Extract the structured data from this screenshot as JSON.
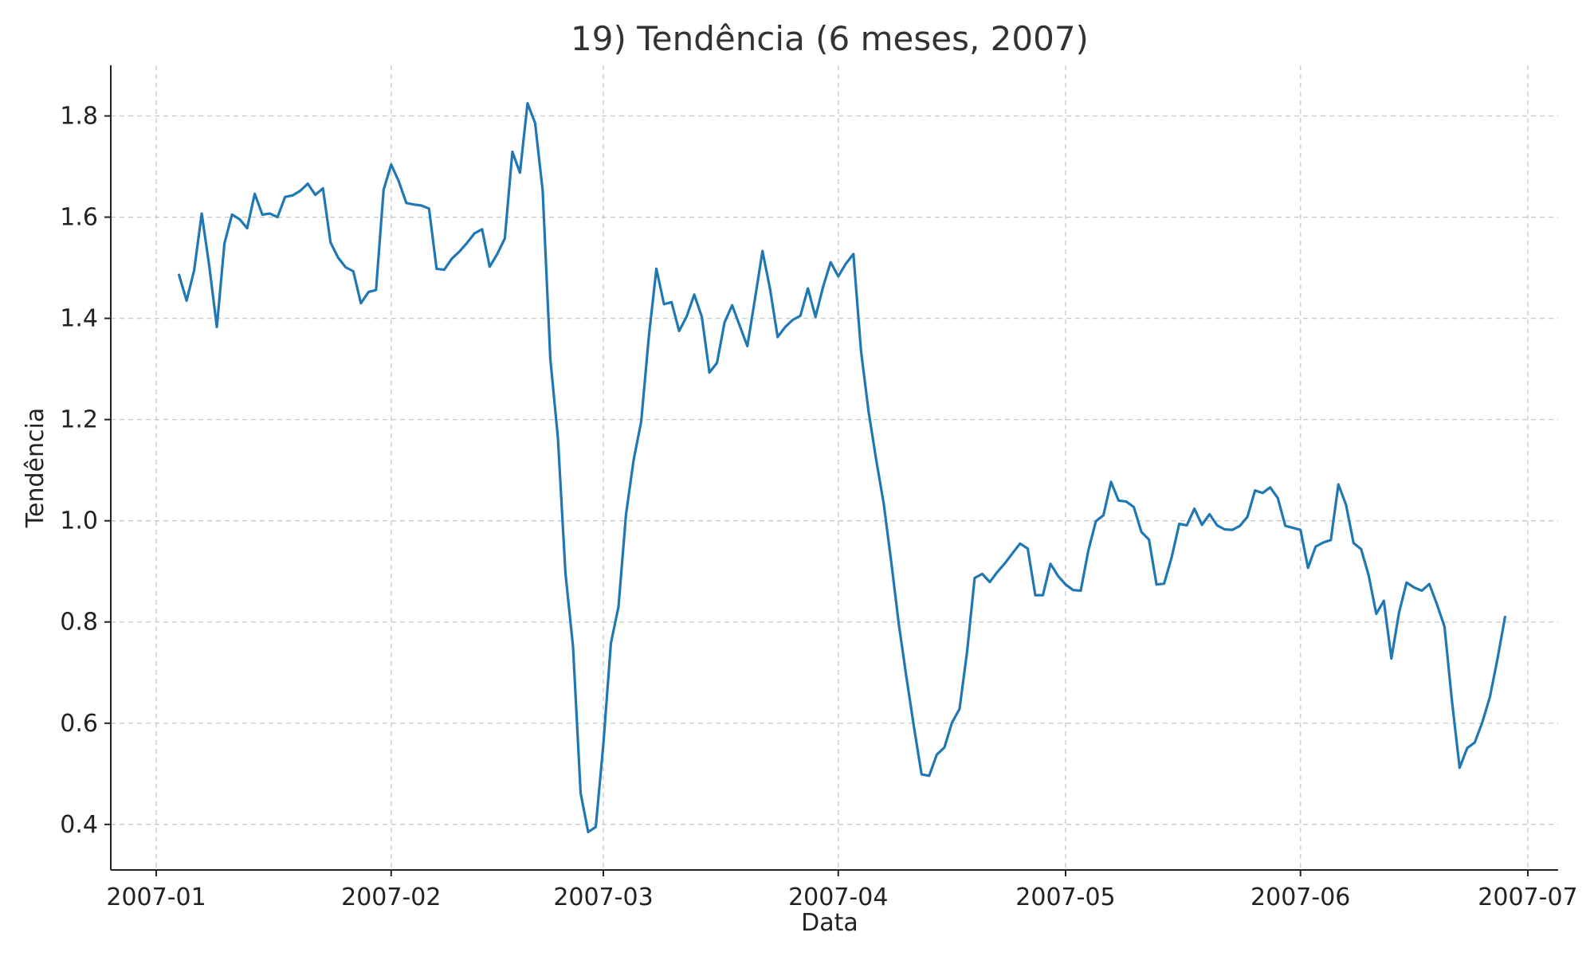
{
  "chart_data": {
    "type": "line",
    "title": "19) Tendência (6 meses, 2007)",
    "xlabel": "Data",
    "ylabel": "Tendência",
    "xlim": [
      "2006-12-26",
      "2007-07-05"
    ],
    "ylim": [
      0.31,
      1.9
    ],
    "x_ticks": [
      "2007-01",
      "2007-02",
      "2007-03",
      "2007-04",
      "2007-05",
      "2007-06",
      "2007-07"
    ],
    "x_tick_dates": [
      "2007-01-01",
      "2007-02-01",
      "2007-03-01",
      "2007-04-01",
      "2007-05-01",
      "2007-06-01",
      "2007-07-01"
    ],
    "y_ticks": [
      0.4,
      0.6,
      0.8,
      1.0,
      1.2,
      1.4,
      1.6,
      1.8
    ],
    "y_tick_labels": [
      "0.4",
      "0.6",
      "0.8",
      "1.0",
      "1.2",
      "1.4",
      "1.6",
      "1.8"
    ],
    "grid": true,
    "series_color": "#1f77b4",
    "series": [
      {
        "x": [
          "2007-01-04",
          "2007-01-05",
          "2007-01-06",
          "2007-01-07",
          "2007-01-08",
          "2007-01-09",
          "2007-01-10",
          "2007-01-11",
          "2007-01-12",
          "2007-01-13",
          "2007-01-14",
          "2007-01-15",
          "2007-01-16",
          "2007-01-17",
          "2007-01-18",
          "2007-01-19",
          "2007-01-20",
          "2007-01-21",
          "2007-01-22",
          "2007-01-23",
          "2007-01-24",
          "2007-01-25",
          "2007-01-26",
          "2007-01-27",
          "2007-01-28",
          "2007-01-29",
          "2007-01-30",
          "2007-01-31",
          "2007-02-01",
          "2007-02-02",
          "2007-02-03",
          "2007-02-04",
          "2007-02-05",
          "2007-02-06",
          "2007-02-07",
          "2007-02-08",
          "2007-02-09",
          "2007-02-10",
          "2007-02-11",
          "2007-02-12",
          "2007-02-13",
          "2007-02-14",
          "2007-02-15",
          "2007-02-16",
          "2007-02-17",
          "2007-02-18",
          "2007-02-19",
          "2007-02-20",
          "2007-02-21",
          "2007-02-22",
          "2007-02-23",
          "2007-02-24",
          "2007-02-25",
          "2007-02-26",
          "2007-02-27",
          "2007-02-28",
          "2007-03-01",
          "2007-03-02",
          "2007-03-03",
          "2007-03-04",
          "2007-03-05",
          "2007-03-06",
          "2007-03-07",
          "2007-03-08",
          "2007-03-09",
          "2007-03-10",
          "2007-03-11",
          "2007-03-12",
          "2007-03-13",
          "2007-03-14",
          "2007-03-15",
          "2007-03-16",
          "2007-03-17",
          "2007-03-18",
          "2007-03-19",
          "2007-03-20",
          "2007-03-21",
          "2007-03-22",
          "2007-03-23",
          "2007-03-24",
          "2007-03-25",
          "2007-03-26",
          "2007-03-27",
          "2007-03-28",
          "2007-03-29",
          "2007-03-30",
          "2007-03-31",
          "2007-04-01",
          "2007-04-02",
          "2007-04-03",
          "2007-04-04",
          "2007-04-05",
          "2007-04-06",
          "2007-04-07",
          "2007-04-08",
          "2007-04-09",
          "2007-04-10",
          "2007-04-11",
          "2007-04-12",
          "2007-04-13",
          "2007-04-14",
          "2007-04-15",
          "2007-04-16",
          "2007-04-17",
          "2007-04-18",
          "2007-04-19",
          "2007-04-20",
          "2007-04-21",
          "2007-04-22",
          "2007-04-23",
          "2007-04-24",
          "2007-04-25",
          "2007-04-26",
          "2007-04-27",
          "2007-04-28",
          "2007-04-29",
          "2007-04-30",
          "2007-05-01",
          "2007-05-02",
          "2007-05-03",
          "2007-05-04",
          "2007-05-05",
          "2007-05-06",
          "2007-05-07",
          "2007-05-08",
          "2007-05-09",
          "2007-05-10",
          "2007-05-11",
          "2007-05-12",
          "2007-05-13",
          "2007-05-14",
          "2007-05-15",
          "2007-05-16",
          "2007-05-17",
          "2007-05-18",
          "2007-05-19",
          "2007-05-20",
          "2007-05-21",
          "2007-05-22",
          "2007-05-23",
          "2007-05-24",
          "2007-05-25",
          "2007-05-26",
          "2007-05-27",
          "2007-05-28",
          "2007-05-29",
          "2007-05-30",
          "2007-05-31",
          "2007-06-01",
          "2007-06-02",
          "2007-06-03",
          "2007-06-04",
          "2007-06-05",
          "2007-06-06",
          "2007-06-07",
          "2007-06-08",
          "2007-06-09",
          "2007-06-10",
          "2007-06-11",
          "2007-06-12",
          "2007-06-13",
          "2007-06-14",
          "2007-06-15",
          "2007-06-16",
          "2007-06-17",
          "2007-06-18",
          "2007-06-19",
          "2007-06-20",
          "2007-06-21",
          "2007-06-22",
          "2007-06-23",
          "2007-06-24",
          "2007-06-25",
          "2007-06-26",
          "2007-06-27",
          "2007-06-28"
        ],
        "y": [
          1.486,
          1.435,
          1.495,
          1.607,
          1.503,
          1.383,
          1.548,
          1.605,
          1.596,
          1.578,
          1.646,
          1.605,
          1.607,
          1.6,
          1.64,
          1.643,
          1.652,
          1.666,
          1.644,
          1.657,
          1.55,
          1.52,
          1.501,
          1.493,
          1.43,
          1.452,
          1.456,
          1.654,
          1.704,
          1.671,
          1.628,
          1.625,
          1.623,
          1.617,
          1.498,
          1.496,
          1.518,
          1.532,
          1.549,
          1.568,
          1.576,
          1.502,
          1.527,
          1.558,
          1.729,
          1.688,
          1.825,
          1.786,
          1.652,
          1.32,
          1.164,
          0.896,
          0.751,
          0.462,
          0.385,
          0.395,
          0.558,
          0.758,
          0.83,
          1.013,
          1.12,
          1.196,
          1.364,
          1.498,
          1.428,
          1.432,
          1.375,
          1.404,
          1.447,
          1.403,
          1.293,
          1.312,
          1.392,
          1.426,
          1.385,
          1.345,
          1.438,
          1.533,
          1.458,
          1.363,
          1.383,
          1.397,
          1.405,
          1.459,
          1.403,
          1.462,
          1.511,
          1.483,
          1.508,
          1.527,
          1.336,
          1.216,
          1.121,
          1.034,
          0.918,
          0.795,
          0.691,
          0.592,
          0.499,
          0.496,
          0.538,
          0.552,
          0.601,
          0.628,
          0.741,
          0.887,
          0.895,
          0.879,
          0.899,
          0.916,
          0.936,
          0.955,
          0.945,
          0.853,
          0.853,
          0.915,
          0.891,
          0.874,
          0.863,
          0.862,
          0.941,
          0.999,
          1.011,
          1.077,
          1.04,
          1.038,
          1.027,
          0.978,
          0.963,
          0.874,
          0.876,
          0.928,
          0.994,
          0.991,
          1.024,
          0.992,
          1.013,
          0.991,
          0.983,
          0.982,
          0.99,
          1.008,
          1.06,
          1.055,
          1.066,
          1.045,
          0.99,
          0.986,
          0.982,
          0.907,
          0.949,
          0.957,
          0.962,
          1.072,
          1.032,
          0.956,
          0.944,
          0.892,
          0.816,
          0.842,
          0.728,
          0.818,
          0.878,
          0.868,
          0.862,
          0.875,
          0.835,
          0.791,
          0.642,
          0.512,
          0.551,
          0.562,
          0.602,
          0.652,
          0.727,
          0.81
        ]
      }
    ]
  }
}
